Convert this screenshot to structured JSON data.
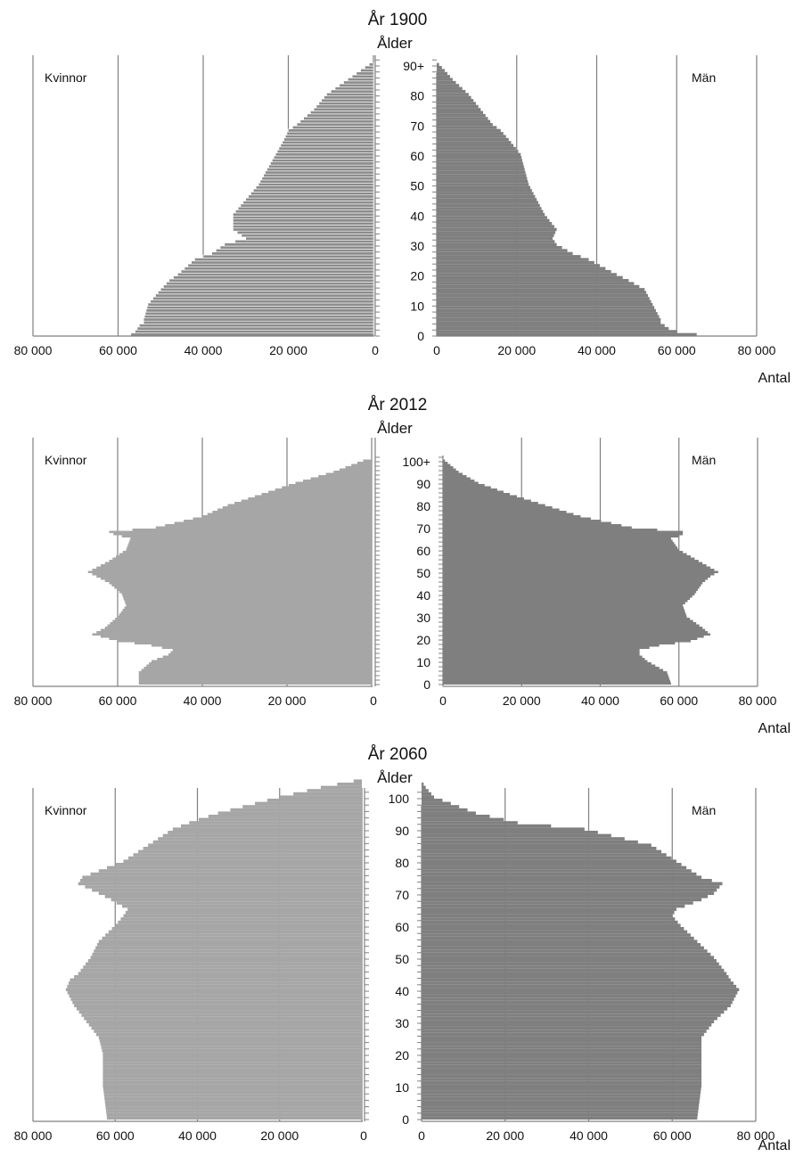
{
  "chart_data": [
    {
      "type": "bar",
      "title": "År 1900",
      "ylabel": "Ålder",
      "xlabel": "Antal",
      "female_label": "Kvinnor",
      "male_label": "Män",
      "female_ticks": [
        "80 000",
        "60 000",
        "40 000",
        "20 000",
        "0"
      ],
      "male_ticks": [
        "0",
        "20 000",
        "40 000",
        "60 000",
        "80 000"
      ],
      "age_ticks": [
        "0",
        "10",
        "20",
        "30",
        "40",
        "50",
        "60",
        "70",
        "80",
        "90+"
      ],
      "xlim": [
        0,
        80000
      ],
      "age_range": [
        0,
        90
      ],
      "female_fill": "#8c8c8c",
      "male_fill": "#7f7f7f",
      "female_outline": "#ffffff",
      "age_keypoints": [
        0,
        1,
        2,
        3,
        4,
        5,
        10,
        15,
        18,
        20,
        25,
        27,
        30,
        32,
        35,
        40,
        45,
        50,
        55,
        60,
        65,
        68,
        70,
        75,
        80,
        85,
        88,
        90
      ],
      "female_keypoints": [
        57000,
        56000,
        55500,
        55000,
        54000,
        54000,
        53000,
        50000,
        48000,
        46000,
        42000,
        38000,
        35000,
        30000,
        33000,
        33000,
        30000,
        27000,
        25000,
        23000,
        21000,
        20000,
        18000,
        14000,
        11000,
        6000,
        3000,
        1000
      ],
      "male_keypoints": [
        65000,
        60000,
        58000,
        57000,
        56000,
        56000,
        54000,
        52000,
        48000,
        45000,
        38000,
        34000,
        30000,
        29000,
        30000,
        27000,
        25000,
        23000,
        22000,
        21000,
        18000,
        16000,
        14000,
        11000,
        8000,
        4000,
        2000,
        600
      ]
    },
    {
      "type": "bar",
      "title": "År 2012",
      "ylabel": "Ålder",
      "xlabel": "Antal",
      "female_label": "Kvinnor",
      "male_label": "Män",
      "female_ticks": [
        "80 000",
        "60 000",
        "40 000",
        "20 000",
        "0"
      ],
      "male_ticks": [
        "0",
        "20 000",
        "40 000",
        "60 000",
        "80 000"
      ],
      "age_ticks": [
        "0",
        "10",
        "20",
        "30",
        "40",
        "50",
        "60",
        "70",
        "80",
        "90",
        "100+"
      ],
      "xlim": [
        0,
        80000
      ],
      "age_range": [
        0,
        100
      ],
      "female_fill": "#a6a6a6",
      "male_fill": "#7f7f7f",
      "female_outline": "#a6a6a6",
      "age_keypoints": [
        0,
        5,
        10,
        13,
        15,
        17,
        19,
        22,
        25,
        30,
        35,
        40,
        45,
        48,
        50,
        55,
        60,
        65,
        66,
        67,
        68,
        70,
        75,
        80,
        85,
        90,
        95,
        100
      ],
      "female_keypoints": [
        55000,
        55000,
        52000,
        48000,
        47000,
        52000,
        60000,
        66000,
        63000,
        60000,
        58000,
        59000,
        62000,
        65000,
        67000,
        62000,
        58000,
        57000,
        59000,
        61000,
        62000,
        51000,
        40000,
        34000,
        26000,
        18000,
        9000,
        2000
      ],
      "male_keypoints": [
        58000,
        57000,
        52000,
        50000,
        50000,
        55000,
        63000,
        68000,
        66000,
        62000,
        61000,
        64000,
        66000,
        68000,
        70000,
        65000,
        60000,
        58000,
        60000,
        61000,
        61000,
        48000,
        35000,
        26000,
        17000,
        9000,
        4000,
        500
      ]
    },
    {
      "type": "bar",
      "title": "År 2060",
      "ylabel": "Ålder",
      "xlabel": "Antal",
      "female_label": "Kvinnor",
      "male_label": "Män",
      "female_ticks": [
        "80 000",
        "60 000",
        "40 000",
        "20 000",
        "0"
      ],
      "male_ticks": [
        "0",
        "20 000",
        "40 000",
        "60 000",
        "80 000"
      ],
      "age_ticks": [
        "0",
        "10",
        "20",
        "30",
        "40",
        "50",
        "60",
        "70",
        "80",
        "90",
        "100"
      ],
      "xlim": [
        0,
        80000
      ],
      "age_range": [
        0,
        100
      ],
      "female_fill": "#a6a6a6",
      "male_fill": "#7f7f7f",
      "female_outline": "#a6a6a6",
      "age_keypoints": [
        0,
        10,
        20,
        25,
        30,
        35,
        40,
        43,
        45,
        50,
        55,
        60,
        63,
        65,
        68,
        70,
        73,
        75,
        80,
        85,
        90,
        92,
        95,
        100,
        103,
        105
      ],
      "female_keypoints": [
        62000,
        63000,
        63000,
        64000,
        67000,
        70000,
        72000,
        71000,
        69000,
        66000,
        64000,
        60000,
        58000,
        57000,
        61000,
        64000,
        69000,
        68000,
        58000,
        52000,
        46000,
        42000,
        35000,
        20000,
        10000,
        2000
      ],
      "male_keypoints": [
        66000,
        67000,
        67000,
        67000,
        70000,
        74000,
        76000,
        74000,
        73000,
        70000,
        66000,
        62000,
        60000,
        61000,
        67000,
        70000,
        72000,
        67000,
        61000,
        55000,
        39000,
        23000,
        13000,
        3000,
        1000,
        0
      ]
    }
  ]
}
